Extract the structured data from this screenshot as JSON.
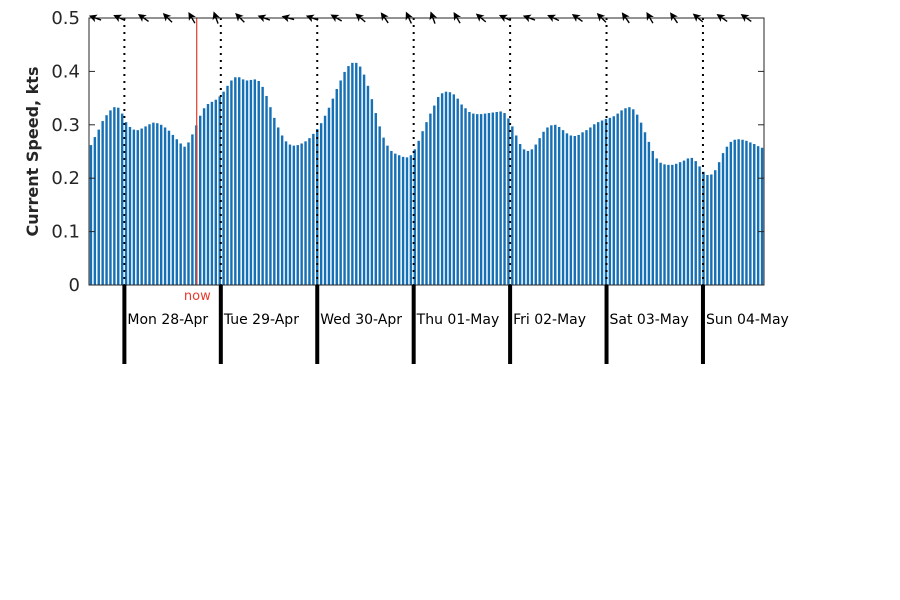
{
  "chart_data": {
    "type": "bar",
    "ylabel": "Current Speed, kts",
    "ylim": [
      0,
      0.5
    ],
    "yticks": [
      "0",
      "0.1",
      "0.2",
      "0.3",
      "0.4",
      "0.5"
    ],
    "x_range_days": [
      27.633,
      34.633
    ],
    "bar_color": "#1570b5",
    "now": {
      "label": "now",
      "day": 28.75,
      "color": "#e8392c"
    },
    "days": [
      {
        "label": "Mon 28-Apr",
        "start": 28
      },
      {
        "label": "Tue 29-Apr",
        "start": 29
      },
      {
        "label": "Wed 30-Apr",
        "start": 30
      },
      {
        "label": "Thu 01-May",
        "start": 31
      },
      {
        "label": "Fri 02-May",
        "start": 32
      },
      {
        "label": "Sat 03-May",
        "start": 33
      },
      {
        "label": "Sun 04-May",
        "start": 34
      }
    ],
    "direction_arrows": {
      "start_day": 27.7,
      "step_day": 0.25,
      "angles_deg": [
        200,
        205,
        215,
        225,
        240,
        250,
        225,
        200,
        195,
        200,
        210,
        220,
        235,
        245,
        250,
        240,
        220,
        205,
        200,
        205,
        215,
        225,
        235,
        240,
        235,
        220,
        215,
        215
      ]
    },
    "values": [
      0.262,
      0.277,
      0.291,
      0.307,
      0.318,
      0.327,
      0.333,
      0.332,
      0.321,
      0.305,
      0.296,
      0.291,
      0.29,
      0.293,
      0.297,
      0.301,
      0.304,
      0.303,
      0.3,
      0.295,
      0.289,
      0.281,
      0.273,
      0.265,
      0.259,
      0.267,
      0.282,
      0.299,
      0.317,
      0.331,
      0.339,
      0.343,
      0.347,
      0.353,
      0.362,
      0.373,
      0.383,
      0.389,
      0.389,
      0.385,
      0.383,
      0.384,
      0.385,
      0.382,
      0.371,
      0.354,
      0.333,
      0.313,
      0.295,
      0.28,
      0.269,
      0.263,
      0.261,
      0.262,
      0.265,
      0.269,
      0.275,
      0.283,
      0.292,
      0.303,
      0.317,
      0.332,
      0.349,
      0.367,
      0.383,
      0.399,
      0.41,
      0.416,
      0.416,
      0.409,
      0.394,
      0.373,
      0.348,
      0.322,
      0.297,
      0.276,
      0.261,
      0.251,
      0.246,
      0.243,
      0.24,
      0.239,
      0.243,
      0.254,
      0.27,
      0.288,
      0.305,
      0.321,
      0.336,
      0.352,
      0.359,
      0.362,
      0.361,
      0.357,
      0.349,
      0.338,
      0.331,
      0.324,
      0.321,
      0.32,
      0.32,
      0.321,
      0.322,
      0.323,
      0.324,
      0.325,
      0.322,
      0.312,
      0.297,
      0.28,
      0.264,
      0.254,
      0.251,
      0.254,
      0.263,
      0.275,
      0.287,
      0.295,
      0.299,
      0.3,
      0.296,
      0.29,
      0.284,
      0.28,
      0.279,
      0.281,
      0.286,
      0.29,
      0.295,
      0.301,
      0.305,
      0.308,
      0.311,
      0.313,
      0.316,
      0.321,
      0.327,
      0.331,
      0.333,
      0.329,
      0.319,
      0.304,
      0.286,
      0.268,
      0.251,
      0.237,
      0.229,
      0.226,
      0.225,
      0.225,
      0.227,
      0.23,
      0.233,
      0.237,
      0.238,
      0.232,
      0.222,
      0.212,
      0.206,
      0.207,
      0.215,
      0.23,
      0.247,
      0.259,
      0.268,
      0.272,
      0.273,
      0.272,
      0.27,
      0.267,
      0.264,
      0.26,
      0.257
    ]
  }
}
